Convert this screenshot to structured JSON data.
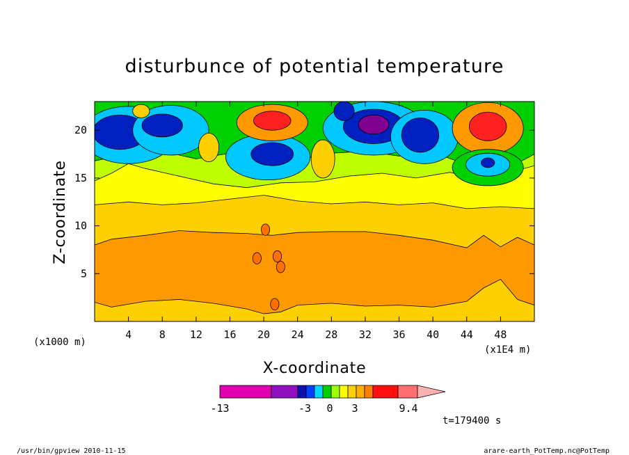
{
  "chart_data": {
    "type": "heatmap",
    "title": "disturbunce of potential temperature",
    "xlabel": "X-coordinate",
    "ylabel": "Z-coordinate",
    "x_unit_left": "(x1000 m)",
    "x_unit_right": "(x1E4 m)",
    "xlim": [
      0,
      52
    ],
    "ylim": [
      0,
      23
    ],
    "x_ticks": [
      4,
      8,
      12,
      16,
      20,
      24,
      28,
      32,
      36,
      40,
      44,
      48
    ],
    "y_ticks": [
      5,
      10,
      15,
      20
    ],
    "colorbar": {
      "labels": [
        {
          "text": "-13",
          "value": -13
        },
        {
          "text": "-3",
          "value": -3
        },
        {
          "text": "0",
          "value": 0
        },
        {
          "text": "3",
          "value": 3
        },
        {
          "text": "9.4",
          "value": 9.4
        }
      ],
      "colors": [
        "#e000b0",
        "#9010c0",
        "#1010b0",
        "#0040ff",
        "#00d8ff",
        "#00d000",
        "#a0ff00",
        "#ffff00",
        "#ffd000",
        "#ffb000",
        "#ff8000",
        "#ff1010",
        "#ff7070",
        "#ffb0b0"
      ]
    },
    "field_colors": {
      "lowest": "#800090",
      "very_low": "#0020c0",
      "low": "#00c8ff",
      "slightly_low": "#00d000",
      "near_zero": "#c0ff00",
      "zero": "#ffff00",
      "slightly_high": "#ffd000",
      "high": "#ff9900",
      "very_high": "#ff2020",
      "highest": "#ff4040"
    },
    "time_label": "t=179400 s"
  },
  "footer": {
    "left": "/usr/bin/gpview   2010-11-15",
    "right": "arare-earth_PotTemp.nc@PotTemp"
  }
}
